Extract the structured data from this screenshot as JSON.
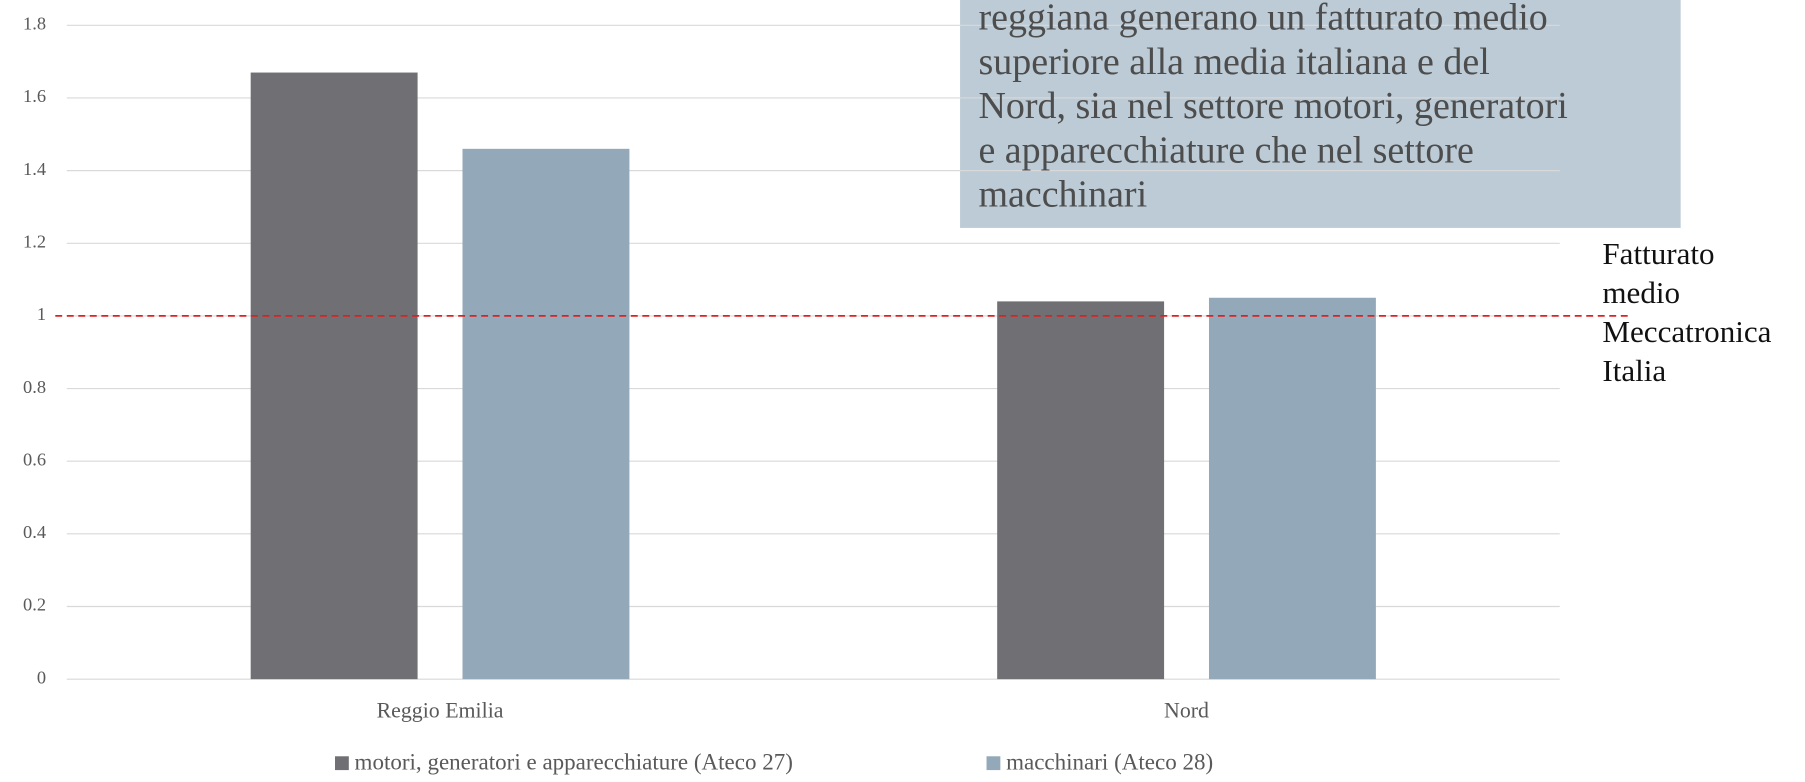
{
  "chart_data": {
    "type": "bar",
    "categories": [
      "Reggio Emilia",
      "Nord"
    ],
    "series": [
      {
        "name": "motori, generatori e apparecchiature (Ateco 27)",
        "color": "#706f74",
        "values": [
          1.67,
          1.04
        ]
      },
      {
        "name": "macchinari (Ateco 28)",
        "color": "#93a9b9",
        "values": [
          1.46,
          1.05
        ]
      }
    ],
    "ylim": [
      0,
      1.8
    ],
    "yticks": [
      0,
      0.2,
      0.4,
      0.6,
      0.8,
      1,
      1.2,
      1.4,
      1.6,
      1.8
    ],
    "grid": true,
    "legend": "bottom",
    "reference_line": {
      "value": 1,
      "color": "#e02020",
      "label": [
        "Fatturato",
        "medio",
        "Meccatronica",
        "Italia"
      ]
    },
    "annotation": [
      "reggiana generano un fatturato medio",
      "superiore alla media italiana e del",
      "Nord, sia nel settore motori, generatori",
      "e apparecchiature che nel settore",
      "macchinari"
    ]
  }
}
